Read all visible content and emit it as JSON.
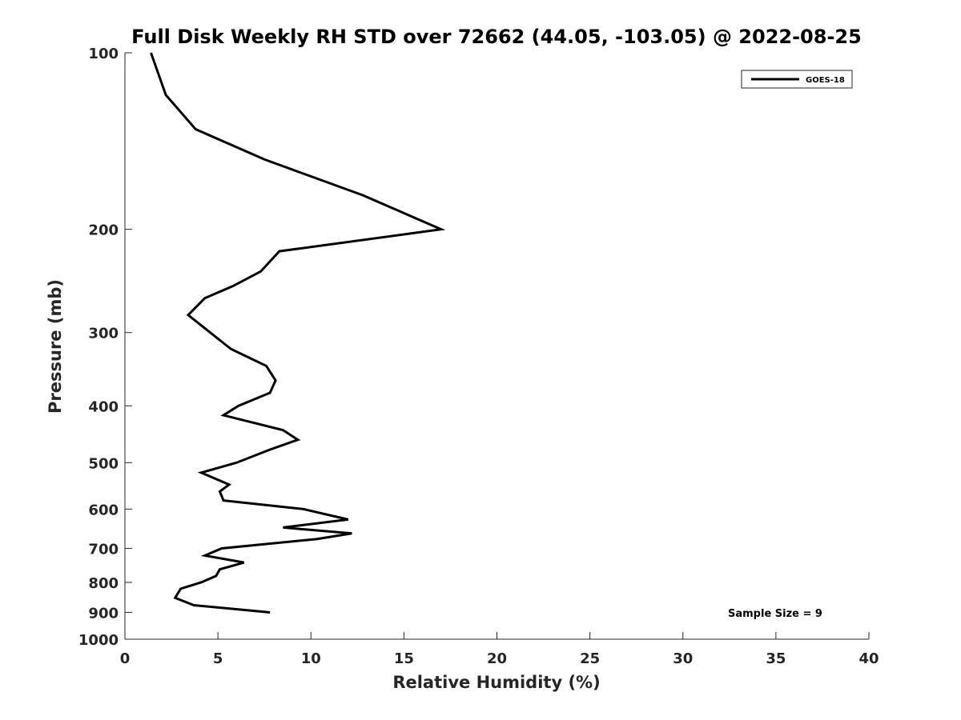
{
  "chart_data": {
    "type": "line",
    "title": "Full Disk Weekly RH STD over 72662 (44.05, -103.05) @ 2022-08-25",
    "xlabel": "Relative Humidity (%)",
    "ylabel": "Pressure (mb)",
    "xlim": [
      0,
      40
    ],
    "ylim": [
      100,
      1000
    ],
    "y_scale": "log",
    "y_reversed": true,
    "grid": false,
    "legend_position": "top-right",
    "x_ticks": [
      "0",
      "5",
      "10",
      "15",
      "20",
      "25",
      "30",
      "35",
      "40"
    ],
    "y_ticks": [
      "100",
      "200",
      "300",
      "400",
      "500",
      "600",
      "700",
      "800",
      "900",
      "1000"
    ],
    "series": [
      {
        "name": "GOES-18",
        "color": "#000000",
        "points": [
          {
            "x": 1.4,
            "y": 100
          },
          {
            "x": 2.2,
            "y": 118
          },
          {
            "x": 3.8,
            "y": 135
          },
          {
            "x": 7.5,
            "y": 152
          },
          {
            "x": 12.8,
            "y": 175
          },
          {
            "x": 17.0,
            "y": 200
          },
          {
            "x": 8.3,
            "y": 218
          },
          {
            "x": 7.3,
            "y": 236
          },
          {
            "x": 5.8,
            "y": 250
          },
          {
            "x": 4.3,
            "y": 262
          },
          {
            "x": 3.4,
            "y": 280
          },
          {
            "x": 5.7,
            "y": 320
          },
          {
            "x": 7.6,
            "y": 342
          },
          {
            "x": 8.1,
            "y": 362
          },
          {
            "x": 7.8,
            "y": 380
          },
          {
            "x": 6.1,
            "y": 400
          },
          {
            "x": 5.3,
            "y": 415
          },
          {
            "x": 8.5,
            "y": 440
          },
          {
            "x": 9.3,
            "y": 457
          },
          {
            "x": 7.8,
            "y": 475
          },
          {
            "x": 6.0,
            "y": 500
          },
          {
            "x": 4.1,
            "y": 520
          },
          {
            "x": 5.6,
            "y": 545
          },
          {
            "x": 5.1,
            "y": 560
          },
          {
            "x": 5.3,
            "y": 580
          },
          {
            "x": 9.6,
            "y": 600
          },
          {
            "x": 12.0,
            "y": 625
          },
          {
            "x": 8.5,
            "y": 645
          },
          {
            "x": 12.2,
            "y": 660
          },
          {
            "x": 10.3,
            "y": 675
          },
          {
            "x": 5.2,
            "y": 700
          },
          {
            "x": 4.3,
            "y": 720
          },
          {
            "x": 6.4,
            "y": 740
          },
          {
            "x": 5.1,
            "y": 760
          },
          {
            "x": 4.9,
            "y": 780
          },
          {
            "x": 4.1,
            "y": 800
          },
          {
            "x": 3.0,
            "y": 820
          },
          {
            "x": 2.7,
            "y": 850
          },
          {
            "x": 3.7,
            "y": 875
          },
          {
            "x": 7.8,
            "y": 900
          }
        ]
      }
    ],
    "annotations": [
      "Sample Size = 9"
    ]
  }
}
